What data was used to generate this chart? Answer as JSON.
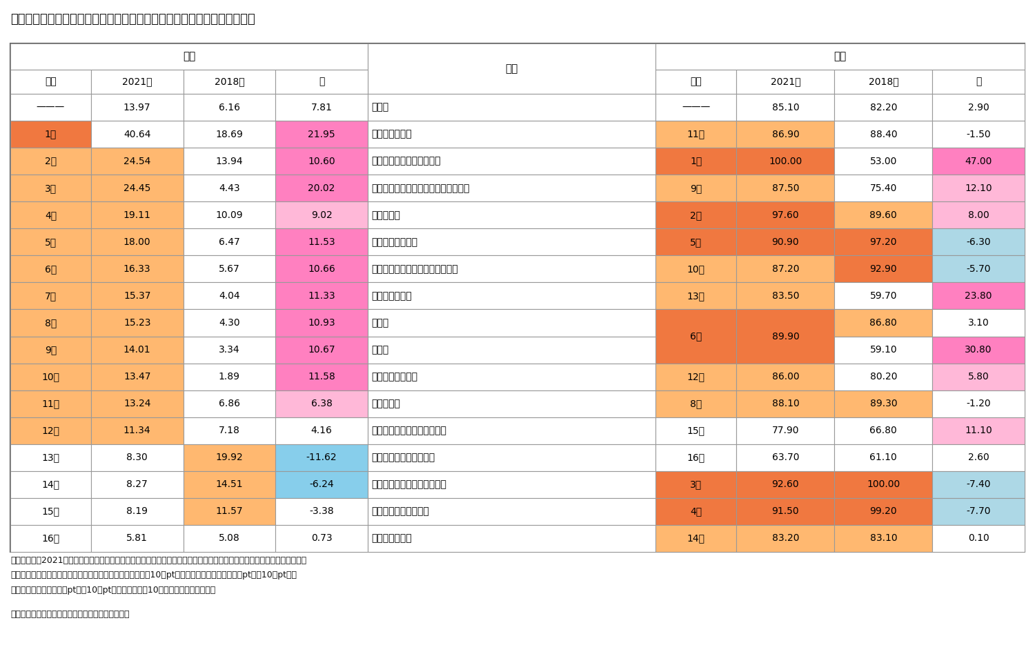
{
  "title": "図表４　産業別・男女別に見た育児休業取得率（％）の順位（民間企業）",
  "note1": "（注）順位は2021年のもの。女性は育児休業取得率９割以上を濃い橙色、８割以上９割未満を薄い橙色で、男性は３割以上",
  "note2": "を濃い橙色、１割以上３割未満を薄い橙色で網掛け。差は＋10％pt以上を濃いピンク色、＋５％pt以上10％pt未満",
  "note3": "を薄いピンク色、－５％pt以上10％pt未満を水色、－10％以上を青色で網掛け。",
  "source": "（資料）厚生労働省「雇用均等基本調査」より作成",
  "col_headers1": [
    "男性",
    "業種",
    "女性"
  ],
  "col_headers2": [
    "順位",
    "2021年",
    "2018年",
    "差",
    "順位",
    "2021年",
    "2018年",
    "差"
  ],
  "rows": [
    {
      "m_rank": "———",
      "m_2021": "13.97",
      "m_2018": "6.16",
      "m_diff": "7.81",
      "industry": "全産業",
      "f_rank": "———",
      "f_2021": "85.10",
      "f_2018": "82.20",
      "f_diff": "2.90",
      "m_rank_bg": "white",
      "m_2021_bg": "white",
      "m_2018_bg": "white",
      "m_diff_bg": "white",
      "f_rank_bg": "white",
      "f_2021_bg": "white",
      "f_2018_bg": "white",
      "f_diff_bg": "white"
    },
    {
      "m_rank": "1位",
      "m_2021": "40.64",
      "m_2018": "18.69",
      "m_diff": "21.95",
      "industry": "金融業，保険業",
      "f_rank": "11位",
      "f_2021": "86.90",
      "f_2018": "88.40",
      "f_diff": "-1.50",
      "m_rank_bg": "#F07840",
      "m_2021_bg": "white",
      "m_2018_bg": "white",
      "m_diff_bg": "#FF80C0",
      "f_rank_bg": "#FFB870",
      "f_2021_bg": "#FFB870",
      "f_2018_bg": "white",
      "f_diff_bg": "white"
    },
    {
      "m_rank": "2位",
      "m_2021": "24.54",
      "m_2018": "13.94",
      "m_diff": "10.60",
      "industry": "鉱業，採石業，砂利採取業",
      "f_rank": "1位",
      "f_2021": "100.00",
      "f_2018": "53.00",
      "f_diff": "47.00",
      "m_rank_bg": "#FFB870",
      "m_2021_bg": "#FFB870",
      "m_2018_bg": "white",
      "m_diff_bg": "#FF80C0",
      "f_rank_bg": "#F07840",
      "f_2021_bg": "#F07840",
      "f_2018_bg": "white",
      "f_diff_bg": "#FF80C0"
    },
    {
      "m_rank": "3位",
      "m_2021": "24.45",
      "m_2018": "4.43",
      "m_diff": "20.02",
      "industry": "サービス業（他に分類されないもの）",
      "f_rank": "9位",
      "f_2021": "87.50",
      "f_2018": "75.40",
      "f_diff": "12.10",
      "m_rank_bg": "#FFB870",
      "m_2021_bg": "#FFB870",
      "m_2018_bg": "white",
      "m_diff_bg": "#FF80C0",
      "f_rank_bg": "#FFB870",
      "f_2021_bg": "#FFB870",
      "f_2018_bg": "white",
      "f_diff_bg": "#FFB8D8"
    },
    {
      "m_rank": "4位",
      "m_2021": "19.11",
      "m_2018": "10.09",
      "m_diff": "9.02",
      "industry": "情報通信業",
      "f_rank": "2位",
      "f_2021": "97.60",
      "f_2018": "89.60",
      "f_diff": "8.00",
      "m_rank_bg": "#FFB870",
      "m_2021_bg": "#FFB870",
      "m_2018_bg": "white",
      "m_diff_bg": "#FFB8D8",
      "f_rank_bg": "#F07840",
      "f_2021_bg": "#F07840",
      "f_2018_bg": "#FFB870",
      "f_diff_bg": "#FFB8D8"
    },
    {
      "m_rank": "5位",
      "m_2021": "18.00",
      "m_2018": "6.47",
      "m_diff": "11.53",
      "industry": "複合サービス事業",
      "f_rank": "5位",
      "f_2021": "90.90",
      "f_2018": "97.20",
      "f_diff": "-6.30",
      "m_rank_bg": "#FFB870",
      "m_2021_bg": "#FFB870",
      "m_2018_bg": "white",
      "m_diff_bg": "#FF80C0",
      "f_rank_bg": "#F07840",
      "f_2021_bg": "#F07840",
      "f_2018_bg": "#F07840",
      "f_diff_bg": "#ADD8E6"
    },
    {
      "m_rank": "6位",
      "m_2021": "16.33",
      "m_2018": "5.67",
      "m_diff": "10.66",
      "industry": "学術研究，専門・技術サービス業",
      "f_rank": "10位",
      "f_2021": "87.20",
      "f_2018": "92.90",
      "f_diff": "-5.70",
      "m_rank_bg": "#FFB870",
      "m_2021_bg": "#FFB870",
      "m_2018_bg": "white",
      "m_diff_bg": "#FF80C0",
      "f_rank_bg": "#FFB870",
      "f_2021_bg": "#FFB870",
      "f_2018_bg": "#F07840",
      "f_diff_bg": "#ADD8E6"
    },
    {
      "m_rank": "7位",
      "m_2021": "15.37",
      "m_2018": "4.04",
      "m_diff": "11.33",
      "industry": "運輸業，郵便業",
      "f_rank": "13位",
      "f_2021": "83.50",
      "f_2018": "59.70",
      "f_diff": "23.80",
      "m_rank_bg": "#FFB870",
      "m_2021_bg": "#FFB870",
      "m_2018_bg": "white",
      "m_diff_bg": "#FF80C0",
      "f_rank_bg": "#FFB870",
      "f_2021_bg": "#FFB870",
      "f_2018_bg": "white",
      "f_diff_bg": "#FF80C0"
    },
    {
      "m_rank": "8位",
      "m_2021": "15.23",
      "m_2018": "4.30",
      "m_diff": "10.93",
      "industry": "製造業",
      "f_rank": "6位",
      "f_2021": "89.90",
      "f_2018": "86.80",
      "f_diff": "3.10",
      "f_2018b": "59.10",
      "f_diffb": "30.80",
      "m_rank_bg": "#FFB870",
      "m_2021_bg": "#FFB870",
      "m_2018_bg": "white",
      "m_diff_bg": "#FF80C0",
      "f_rank_bg": "#F07840",
      "f_2021_bg": "#F07840",
      "f_2018_bg": "#FFB870",
      "f_diff_bg": "white",
      "f_2018b_bg": "white",
      "f_diffb_bg": "#FF80C0",
      "row_span": true
    },
    {
      "m_rank": "9位",
      "m_2021": "14.01",
      "m_2018": "3.34",
      "m_diff": "10.67",
      "industry": "建設業",
      "f_rank": "",
      "f_2021": "",
      "f_2018": "",
      "f_diff": "",
      "m_rank_bg": "#FFB870",
      "m_2021_bg": "#FFB870",
      "m_2018_bg": "white",
      "m_diff_bg": "#FF80C0",
      "f_rank_bg": "white",
      "f_2021_bg": "white",
      "f_2018_bg": "white",
      "f_diff_bg": "white",
      "row_span_child": true
    },
    {
      "m_rank": "10位",
      "m_2021": "13.47",
      "m_2018": "1.89",
      "m_diff": "11.58",
      "industry": "教育，学習支援業",
      "f_rank": "12位",
      "f_2021": "86.00",
      "f_2018": "80.20",
      "f_diff": "5.80",
      "m_rank_bg": "#FFB870",
      "m_2021_bg": "#FFB870",
      "m_2018_bg": "white",
      "m_diff_bg": "#FF80C0",
      "f_rank_bg": "#FFB870",
      "f_2021_bg": "#FFB870",
      "f_2018_bg": "white",
      "f_diff_bg": "#FFB8D8"
    },
    {
      "m_rank": "11位",
      "m_2021": "13.24",
      "m_2018": "6.86",
      "m_diff": "6.38",
      "industry": "医療，福祉",
      "f_rank": "8位",
      "f_2021": "88.10",
      "f_2018": "89.30",
      "f_diff": "-1.20",
      "m_rank_bg": "#FFB870",
      "m_2021_bg": "#FFB870",
      "m_2018_bg": "white",
      "m_diff_bg": "#FFB8D8",
      "f_rank_bg": "#FFB870",
      "f_2021_bg": "#FFB870",
      "f_2018_bg": "#FFB870",
      "f_diff_bg": "white"
    },
    {
      "m_rank": "12位",
      "m_2021": "11.34",
      "m_2018": "7.18",
      "m_diff": "4.16",
      "industry": "生活関連サービス業，娯楽業",
      "f_rank": "15位",
      "f_2021": "77.90",
      "f_2018": "66.80",
      "f_diff": "11.10",
      "m_rank_bg": "#FFB870",
      "m_2021_bg": "#FFB870",
      "m_2018_bg": "white",
      "m_diff_bg": "white",
      "f_rank_bg": "white",
      "f_2021_bg": "white",
      "f_2018_bg": "white",
      "f_diff_bg": "#FFB8D8"
    },
    {
      "m_rank": "13位",
      "m_2021": "8.30",
      "m_2018": "19.92",
      "m_diff": "-11.62",
      "industry": "宿泊業，飲食サービス業",
      "f_rank": "16位",
      "f_2021": "63.70",
      "f_2018": "61.10",
      "f_diff": "2.60",
      "m_rank_bg": "white",
      "m_2021_bg": "white",
      "m_2018_bg": "#FFB870",
      "m_diff_bg": "#87CEEB",
      "f_rank_bg": "white",
      "f_2021_bg": "white",
      "f_2018_bg": "white",
      "f_diff_bg": "white"
    },
    {
      "m_rank": "14位",
      "m_2021": "8.27",
      "m_2018": "14.51",
      "m_diff": "-6.24",
      "industry": "電気・ガス・熱供給・水道業",
      "f_rank": "3位",
      "f_2021": "92.60",
      "f_2018": "100.00",
      "f_diff": "-7.40",
      "m_rank_bg": "white",
      "m_2021_bg": "white",
      "m_2018_bg": "#FFB870",
      "m_diff_bg": "#87CEEB",
      "f_rank_bg": "#F07840",
      "f_2021_bg": "#F07840",
      "f_2018_bg": "#F07840",
      "f_diff_bg": "#ADD8E6"
    },
    {
      "m_rank": "15位",
      "m_2021": "8.19",
      "m_2018": "11.57",
      "m_diff": "-3.38",
      "industry": "不動産業，物品賃貸業",
      "f_rank": "4位",
      "f_2021": "91.50",
      "f_2018": "99.20",
      "f_diff": "-7.70",
      "m_rank_bg": "white",
      "m_2021_bg": "white",
      "m_2018_bg": "#FFB870",
      "m_diff_bg": "white",
      "f_rank_bg": "#F07840",
      "f_2021_bg": "#F07840",
      "f_2018_bg": "#F07840",
      "f_diff_bg": "#ADD8E6"
    },
    {
      "m_rank": "16位",
      "m_2021": "5.81",
      "m_2018": "5.08",
      "m_diff": "0.73",
      "industry": "卸売業，小売業",
      "f_rank": "14位",
      "f_2021": "83.20",
      "f_2018": "83.10",
      "f_diff": "0.10",
      "m_rank_bg": "white",
      "m_2021_bg": "white",
      "m_2018_bg": "white",
      "m_diff_bg": "white",
      "f_rank_bg": "#FFB870",
      "f_2021_bg": "#FFB870",
      "f_2018_bg": "#FFB870",
      "f_diff_bg": "white"
    }
  ]
}
